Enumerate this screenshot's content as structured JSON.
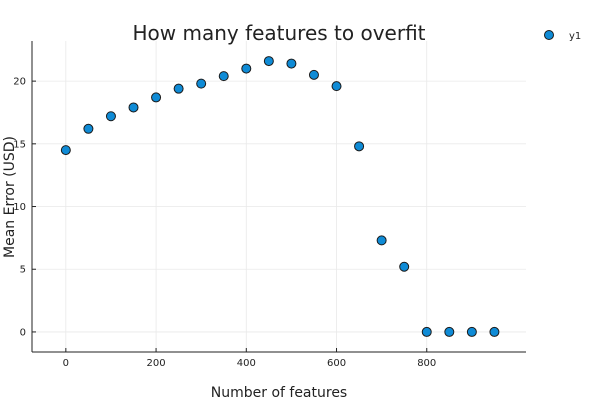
{
  "chart_data": {
    "type": "scatter",
    "title": "How many features to overfit",
    "xlabel": "Number of features",
    "ylabel": "Mean Error (USD)",
    "xlim": [
      -75,
      1020
    ],
    "ylim": [
      -1.6,
      23.2
    ],
    "xticks": [
      0,
      200,
      400,
      600,
      800
    ],
    "yticks": [
      0,
      5,
      10,
      15,
      20
    ],
    "grid": true,
    "legend_position": "top-right",
    "marker_color": "#0f8bd6",
    "marker_edge_color": "#1a1a1a",
    "series": [
      {
        "name": "y1",
        "x": [
          0,
          50,
          100,
          150,
          200,
          250,
          300,
          350,
          400,
          450,
          500,
          550,
          600,
          650,
          700,
          750,
          800,
          850,
          900,
          950
        ],
        "y": [
          14.5,
          16.2,
          17.2,
          17.9,
          18.7,
          19.4,
          19.8,
          20.4,
          21.0,
          21.6,
          21.4,
          20.5,
          19.6,
          14.8,
          7.3,
          5.2,
          0.0,
          0.0,
          0.0,
          0.0
        ]
      }
    ]
  }
}
